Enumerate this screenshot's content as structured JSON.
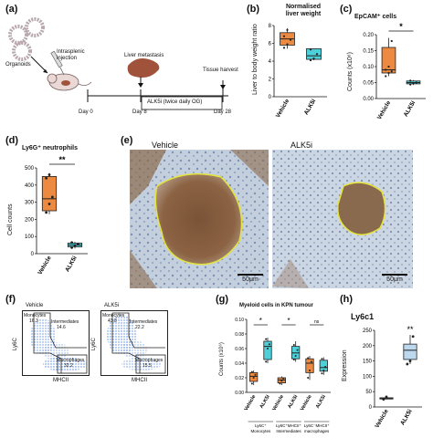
{
  "panels": {
    "a": {
      "label": "(a)",
      "organoids": "Organoids",
      "injection": "Intrasplenic\ninjection",
      "metastasis": "Liver metastasis",
      "harvest": "Tissue harvest",
      "treatment": "ALK5i (twice daily OG)",
      "day0": "Day 0",
      "day8": "Day 8",
      "day28": "Day 28",
      "colors": {
        "liver": "#a0523b",
        "mouse": "#e9d8d6",
        "organoid": "#b8a8ae",
        "box": "#111111"
      }
    },
    "b": {
      "label": "(b)",
      "title": "Normalised\nliver weight",
      "ylabel": "Liver to body weight ratio",
      "ticks": [
        "0",
        "2",
        "4",
        "6",
        "8"
      ]
    },
    "c": {
      "label": "(c)",
      "title": "EpCAM⁺ cells",
      "ylabel": "Counts (x10⁶)",
      "ticks": [
        "0.00",
        "0.05",
        "0.10",
        "0.15",
        "0.20"
      ],
      "sig": "*"
    },
    "d": {
      "label": "(d)",
      "title": "Ly6G⁺ neutrophils",
      "ylabel": "Cell counts",
      "ticks": [
        "0",
        "100",
        "200",
        "300",
        "400",
        "500"
      ],
      "sig": "**"
    },
    "e": {
      "label": "(e)",
      "vehicle": "Vehicle",
      "alk5i": "ALK5i",
      "scale_left": "50μm",
      "scale_right": "50μm"
    },
    "f": {
      "label": "(f)",
      "left_title": "Vehicle",
      "right_title": "ALK5i",
      "ylabel": "Ly6C",
      "xlabel": "MHCII",
      "monocytes": "Monocytes",
      "intermediates": "Intermediates",
      "macrophages": "Macrophages",
      "vehicle_values": {
        "monocytes": "16.3",
        "intermediates": "14.6",
        "macrophages": "32.2"
      },
      "alk5i_values": {
        "monocytes": "43.8",
        "intermediates": "22.2",
        "macrophages": "15.5"
      }
    },
    "g": {
      "label": "(g)",
      "title": "Myeloid cells in KPN tumour",
      "ylabel": "Counts (x10⁶)",
      "ticks": [
        "0.00",
        "0.02",
        "0.04",
        "0.06",
        "0.08",
        "0.10"
      ],
      "sig": [
        "*",
        "*",
        "ns"
      ],
      "groups": [
        "Ly6C⁺\nMonocytes",
        "Ly6C⁺MHCII⁺\nIntermediates",
        "Ly6C⁻MHCII⁺\nmacrophages"
      ]
    },
    "h": {
      "label": "(h)",
      "title": "Ly6c1",
      "ylabel": "Expression",
      "ticks": [
        "0",
        "50",
        "100",
        "150",
        "200",
        "250"
      ],
      "sig": "**"
    }
  },
  "groups": {
    "vehicle": "Vehicle",
    "alk5i": "ALK5i"
  },
  "colors": {
    "vehicle": "#ec8a42",
    "alk5i": "#4ed0d8",
    "vehicle_h": "#ffffff",
    "alk5i_h": "#bcd8ef"
  },
  "chart_data": [
    {
      "panel": "b",
      "type": "box",
      "title": "Normalised liver weight",
      "ylabel": "Liver to body weight ratio",
      "categories": [
        "Vehicle",
        "ALK5i"
      ],
      "ylim": [
        0,
        8
      ],
      "boxes": [
        {
          "name": "Vehicle",
          "min": 5.4,
          "q1": 5.8,
          "median": 6.5,
          "q3": 7.2,
          "max": 7.7,
          "points": [
            5.5,
            5.9,
            6.4,
            6.8,
            7.5
          ]
        },
        {
          "name": "ALK5i",
          "min": 4.1,
          "q1": 4.2,
          "median": 4.6,
          "q3": 5.4,
          "max": 5.4,
          "points": [
            4.1,
            4.3,
            4.8,
            5.3
          ]
        }
      ]
    },
    {
      "panel": "c",
      "type": "box",
      "title": "EpCAM⁺ cells",
      "ylabel": "Counts (x10⁶)",
      "categories": [
        "Vehicle",
        "ALK5i"
      ],
      "ylim": [
        0,
        0.2
      ],
      "boxes": [
        {
          "name": "Vehicle",
          "min": 0.07,
          "q1": 0.08,
          "median": 0.09,
          "q3": 0.16,
          "max": 0.19,
          "points": [
            0.07,
            0.08,
            0.085,
            0.09,
            0.1,
            0.18
          ]
        },
        {
          "name": "ALK5i",
          "min": 0.042,
          "q1": 0.046,
          "median": 0.05,
          "q3": 0.055,
          "max": 0.058,
          "points": [
            0.044,
            0.048,
            0.05,
            0.056
          ]
        }
      ]
    },
    {
      "panel": "d",
      "type": "box",
      "title": "Ly6G⁺ neutrophils",
      "ylabel": "Cell counts",
      "categories": [
        "Vehicle",
        "ALK5i"
      ],
      "ylim": [
        0,
        500
      ],
      "boxes": [
        {
          "name": "Vehicle",
          "min": 230,
          "q1": 250,
          "median": 320,
          "q3": 450,
          "max": 470,
          "points": [
            240,
            290,
            330,
            440,
            460
          ]
        },
        {
          "name": "ALK5i",
          "min": 30,
          "q1": 40,
          "median": 50,
          "q3": 62,
          "max": 70,
          "points": [
            35,
            48,
            55,
            65
          ]
        }
      ]
    },
    {
      "panel": "g",
      "type": "box",
      "title": "Myeloid cells in KPN tumour",
      "ylabel": "Counts (x10⁶)",
      "categories": [
        "Vehicle",
        "ALK5i",
        "Vehicle",
        "ALK5i",
        "Vehicle",
        "ALK5i"
      ],
      "ylim": [
        0,
        0.1
      ],
      "boxes": [
        {
          "name": "Vehicle",
          "min": 0.01,
          "q1": 0.015,
          "median": 0.022,
          "q3": 0.027,
          "max": 0.03,
          "points": [
            0.012,
            0.02,
            0.024,
            0.028
          ]
        },
        {
          "name": "ALK5i",
          "min": 0.04,
          "q1": 0.045,
          "median": 0.063,
          "q3": 0.07,
          "max": 0.075,
          "points": [
            0.042,
            0.06,
            0.066,
            0.073
          ]
        },
        {
          "name": "Vehicle",
          "min": 0.01,
          "q1": 0.013,
          "median": 0.017,
          "q3": 0.02,
          "max": 0.022,
          "points": [
            0.012,
            0.016,
            0.019
          ]
        },
        {
          "name": "ALK5i",
          "min": 0.042,
          "q1": 0.046,
          "median": 0.054,
          "q3": 0.063,
          "max": 0.07,
          "points": [
            0.045,
            0.05,
            0.058,
            0.065
          ]
        },
        {
          "name": "Vehicle",
          "min": 0.017,
          "q1": 0.027,
          "median": 0.04,
          "q3": 0.046,
          "max": 0.05,
          "points": [
            0.02,
            0.03,
            0.042,
            0.047
          ]
        },
        {
          "name": "ALK5i",
          "min": 0.024,
          "q1": 0.029,
          "median": 0.034,
          "q3": 0.044,
          "max": 0.048,
          "points": [
            0.026,
            0.03,
            0.035,
            0.046
          ]
        }
      ]
    },
    {
      "panel": "h",
      "type": "box",
      "title": "Ly6c1",
      "ylabel": "Expression",
      "categories": [
        "Vehicle",
        "ALK5i"
      ],
      "ylim": [
        0,
        250
      ],
      "boxes": [
        {
          "name": "Vehicle",
          "min": 25,
          "q1": 26,
          "median": 28,
          "q3": 30,
          "max": 33,
          "points": [
            25,
            33
          ]
        },
        {
          "name": "ALK5i",
          "min": 140,
          "q1": 155,
          "median": 185,
          "q3": 205,
          "max": 235,
          "points": [
            140,
            150,
            230
          ]
        }
      ]
    }
  ]
}
